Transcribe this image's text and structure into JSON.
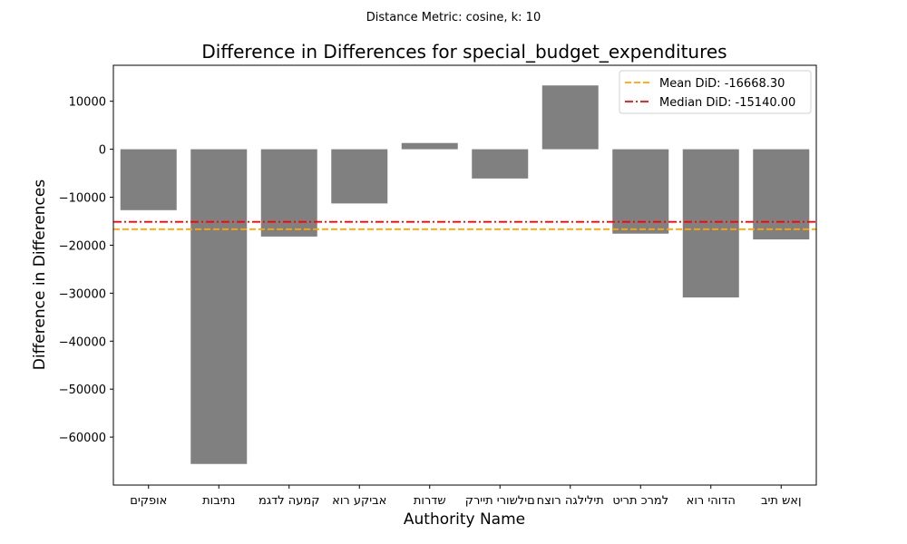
{
  "chart_data": {
    "type": "bar",
    "suptitle": "Distance Metric: cosine, k: 10",
    "title": "Difference in Differences for special_budget_expenditures",
    "xlabel": "Authority Name",
    "ylabel": "Difference in Differences",
    "categories": [
      "אופקים",
      "נתיבות",
      "מגדל העמק",
      "אור עקיבא",
      "שדרות",
      "קריית ירושלים",
      "חצור הגלילית",
      "טירת כרמל",
      "אור יהודה",
      "בית שאן"
    ],
    "category_labels_as_shown": [
      "םיקפוא",
      "תוביתנ",
      "מגדל העמק",
      "אור עקיבא",
      "תורדש",
      "קריית ירושלים",
      "חצור הגלילית",
      "טירת כרמל",
      "אור יהודה",
      "בית שאן"
    ],
    "values": [
      -12700,
      -65600,
      -18200,
      -11300,
      1300,
      -6100,
      13300,
      -17600,
      -30900,
      -18800
    ],
    "bar_color": "#808080",
    "ylim": [
      -70000,
      17500
    ],
    "yticks": [
      10000,
      0,
      -10000,
      -20000,
      -30000,
      -40000,
      -50000,
      -60000
    ],
    "ytick_labels": [
      "10000",
      "0",
      "−10000",
      "−20000",
      "−30000",
      "−40000",
      "−50000",
      "−60000"
    ],
    "reference_lines": [
      {
        "name": "Mean DiD: -16668.30",
        "value": -16668.3,
        "color": "#ffa500",
        "style": "dashed"
      },
      {
        "name": "Median DiD: -15140.00",
        "value": -15140.0,
        "color": "#ff0000",
        "style": "dashdot"
      }
    ],
    "legend_position": "top-right",
    "grid": false
  }
}
